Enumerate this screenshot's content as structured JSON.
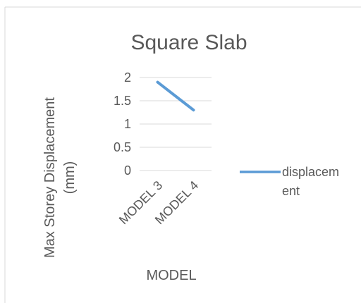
{
  "chart_data": {
    "type": "line",
    "title": "Square Slab",
    "xlabel": "MODEL",
    "ylabel": "Max Storey Displacement (mm)",
    "ylabel_lines": [
      "Max Storey Displacement",
      "(mm)"
    ],
    "categories": [
      "MODEL 3",
      "MODEL 4"
    ],
    "series": [
      {
        "name": "displacement",
        "values": [
          1.9,
          1.3
        ],
        "color": "#5b9bd5"
      }
    ],
    "yticks": [
      0,
      0.5,
      1,
      1.5,
      2
    ],
    "ytick_labels": [
      "0",
      "0.5",
      "1",
      "1.5",
      "2"
    ],
    "ylim": [
      0,
      2
    ],
    "grid": true,
    "legend": {
      "position": "right",
      "label_lines": [
        "displacem",
        "ent"
      ]
    }
  },
  "colors": {
    "series": "#5b9bd5",
    "grid": "#d9d9d9",
    "text": "#595959",
    "frame": "#d9d9d9"
  }
}
